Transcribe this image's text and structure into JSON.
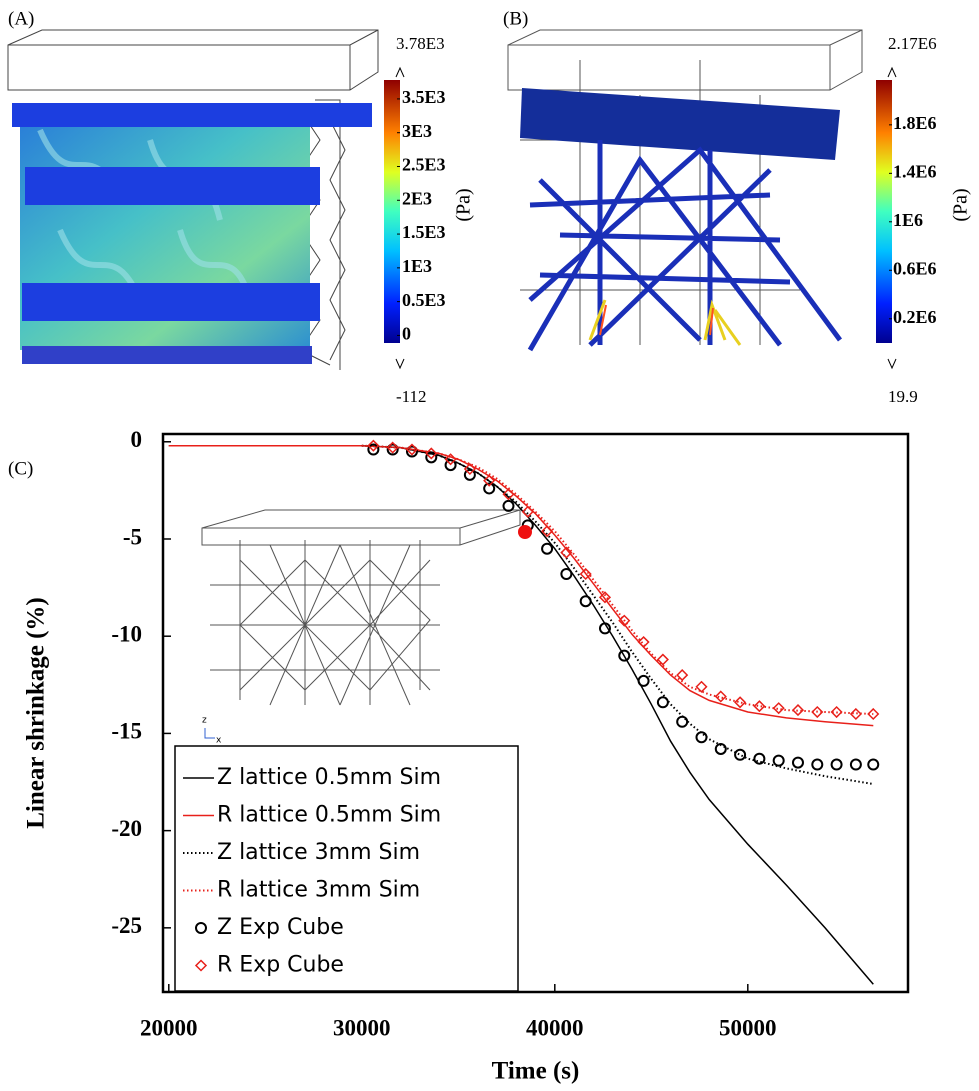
{
  "panels": [
    {
      "label": "(A)",
      "colorbar": {
        "max": {
          "value": 3780,
          "label": "3.78E3"
        },
        "min": -112,
        "unit": "(Pa)",
        "ticks": [
          {
            "value": 3500,
            "label": "3.5E3"
          },
          {
            "value": 3000,
            "label": "3E3"
          },
          {
            "value": 2500,
            "label": "2.5E3"
          },
          {
            "value": 2000,
            "label": "2E3"
          },
          {
            "value": 1500,
            "label": "1.5E3"
          },
          {
            "value": 1000,
            "label": "1E3"
          },
          {
            "value": 500,
            "label": "0.5E3"
          },
          0
        ]
      }
    },
    {
      "label": "(B)",
      "colorbar": {
        "max": {
          "value": 2170000,
          "label": "2.17E6"
        },
        "min": 19.9,
        "unit": "(Pa)",
        "ticks": [
          {
            "value": 1800000,
            "label": "1.8E6"
          },
          {
            "value": 1400000,
            "label": "1.4E6"
          },
          {
            "value": 1000000,
            "label": "1E6"
          },
          {
            "value": 600000,
            "label": "0.6E6"
          },
          {
            "value": 200000,
            "label": "0.2E6"
          }
        ]
      }
    }
  ],
  "chart_data": {
    "type": "line",
    "label": "(C)",
    "x_label": "Time (s)",
    "y_label": "Linear shrinkage (%)",
    "xlim": [
      19700,
      58300
    ],
    "ylim": [
      -28.3,
      0.4
    ],
    "xticks": [
      20000,
      30000,
      40000,
      50000
    ],
    "yticks": [
      0,
      -5,
      -10,
      -15,
      -20,
      -25
    ],
    "inset_axis_labels": [
      "z",
      "x"
    ],
    "series": [
      {
        "name": "Z lattice 0.5mm Sim",
        "color": "#000000",
        "linestyle": "solid",
        "x": [
          20000,
          30000,
          32000,
          34000,
          35000,
          36000,
          37000,
          38000,
          39000,
          40000,
          41000,
          42000,
          43000,
          44000,
          45000,
          46000,
          47000,
          48000,
          50000,
          52000,
          54000,
          56500
        ],
        "values": [
          -0.2,
          -0.2,
          -0.3,
          -0.7,
          -1.1,
          -1.6,
          -2.3,
          -3.2,
          -4.3,
          -5.5,
          -6.9,
          -8.4,
          -10.0,
          -11.7,
          -13.5,
          -15.4,
          -17.0,
          -18.4,
          -20.7,
          -22.8,
          -25.0,
          -27.9
        ]
      },
      {
        "name": "R lattice 0.5mm Sim",
        "color": "#e8201a",
        "linestyle": "solid",
        "x": [
          20000,
          30000,
          32000,
          34000,
          35000,
          36000,
          37000,
          38000,
          39000,
          40000,
          41000,
          42000,
          43000,
          44000,
          45000,
          46000,
          47000,
          48000,
          50000,
          52000,
          54000,
          56500
        ],
        "values": [
          -0.2,
          -0.2,
          -0.3,
          -0.6,
          -0.9,
          -1.4,
          -2.0,
          -2.8,
          -3.7,
          -4.8,
          -6.0,
          -7.3,
          -8.6,
          -9.9,
          -11.0,
          -12.0,
          -12.8,
          -13.3,
          -13.9,
          -14.2,
          -14.4,
          -14.6
        ]
      },
      {
        "name": "Z lattice 3mm Sim",
        "color": "#000000",
        "linestyle": "dotted",
        "x": [
          30000,
          32000,
          34000,
          35000,
          36000,
          37000,
          38000,
          39000,
          40000,
          41000,
          42000,
          43000,
          44000,
          45000,
          46000,
          47000,
          48000,
          50000,
          52000,
          54000,
          56500
        ],
        "values": [
          -0.2,
          -0.3,
          -0.7,
          -1.1,
          -1.6,
          -2.3,
          -3.1,
          -4.1,
          -5.2,
          -6.5,
          -7.9,
          -9.3,
          -10.8,
          -12.2,
          -13.5,
          -14.5,
          -15.3,
          -16.3,
          -16.8,
          -17.2,
          -17.6
        ]
      },
      {
        "name": "R lattice 3mm Sim",
        "color": "#e8201a",
        "linestyle": "dotted",
        "x": [
          30000,
          32000,
          34000,
          35000,
          36000,
          37000,
          38000,
          39000,
          40000,
          41000,
          42000,
          43000,
          44000,
          45000,
          46000,
          47000,
          48000,
          50000,
          52000,
          54000,
          56500
        ],
        "values": [
          -0.2,
          -0.3,
          -0.6,
          -0.9,
          -1.3,
          -1.9,
          -2.7,
          -3.6,
          -4.6,
          -5.8,
          -7.1,
          -8.4,
          -9.7,
          -10.9,
          -11.9,
          -12.6,
          -13.0,
          -13.5,
          -13.8,
          -13.9,
          -14.0
        ]
      },
      {
        "name": "Z Exp Cube",
        "color": "#000000",
        "marker": "circle",
        "x": [
          30600,
          31600,
          32600,
          33600,
          34600,
          35600,
          36600,
          37600,
          38600,
          39600,
          40600,
          41600,
          42600,
          43600,
          44600,
          45600,
          46600,
          47600,
          48600,
          49600,
          50600,
          51600,
          52600,
          53600,
          54600,
          55600,
          56500
        ],
        "values": [
          -0.4,
          -0.4,
          -0.5,
          -0.8,
          -1.2,
          -1.7,
          -2.4,
          -3.3,
          -4.3,
          -5.5,
          -6.8,
          -8.2,
          -9.6,
          -11.0,
          -12.3,
          -13.4,
          -14.4,
          -15.2,
          -15.8,
          -16.1,
          -16.3,
          -16.4,
          -16.5,
          -16.6,
          -16.6,
          -16.6,
          -16.6
        ]
      },
      {
        "name": "R Exp Cube",
        "color": "#e8201a",
        "marker": "diamond",
        "x": [
          30600,
          31600,
          32600,
          33600,
          34600,
          35600,
          36600,
          37600,
          38600,
          39600,
          40600,
          41600,
          42600,
          43600,
          44600,
          45600,
          46600,
          47600,
          48600,
          49600,
          50600,
          51600,
          52600,
          53600,
          54600,
          55600,
          56500
        ],
        "values": [
          -0.2,
          -0.3,
          -0.4,
          -0.6,
          -0.9,
          -1.4,
          -2.0,
          -2.7,
          -3.6,
          -4.6,
          -5.7,
          -6.8,
          -8.0,
          -9.2,
          -10.3,
          -11.2,
          -12.0,
          -12.6,
          -13.1,
          -13.4,
          -13.6,
          -13.7,
          -13.8,
          -13.9,
          -13.9,
          -14.0,
          -14.0
        ]
      }
    ]
  }
}
